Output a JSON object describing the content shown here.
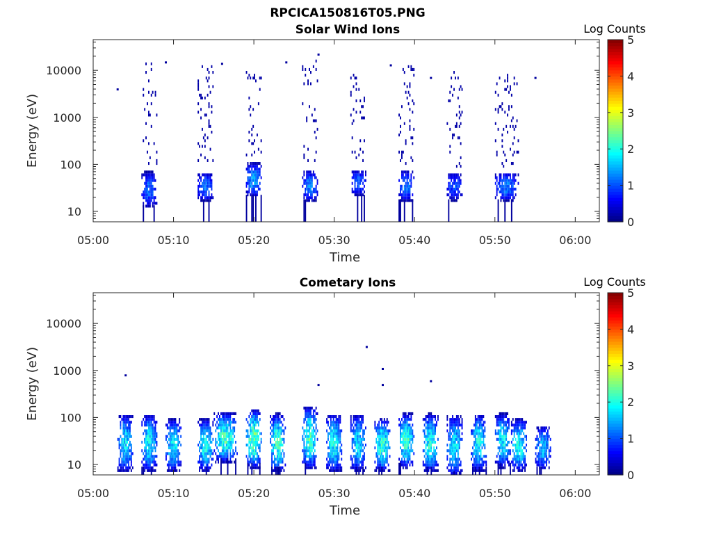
{
  "figure_title": "RPCICA150816T05.PNG",
  "colors": {
    "colormap": "jet",
    "background": "#ffffff",
    "axis": "#262626"
  },
  "chart_data": [
    {
      "type": "heatmap",
      "title": "Solar Wind Ions",
      "xlabel": "Time",
      "ylabel": "Energy (eV)",
      "xscale": "time",
      "yscale": "log",
      "xlim": [
        "05:00",
        "06:03"
      ],
      "ylim": [
        6,
        45000
      ],
      "xticks": [
        "05:00",
        "05:10",
        "05:20",
        "05:30",
        "05:40",
        "05:50",
        "06:00"
      ],
      "yticks": [
        "10",
        "100",
        "1000",
        "10000"
      ],
      "colorbar": {
        "label": "Log Counts",
        "range": [
          0,
          5
        ],
        "ticks": [
          "0",
          "1",
          "2",
          "3",
          "4",
          "5"
        ]
      },
      "bursts": [
        {
          "start": "05:06",
          "end": "05:08",
          "core_energy": [
            15,
            100
          ],
          "peak_log_counts": 1.1,
          "sparse_upper_energy": 15000
        },
        {
          "start": "05:13",
          "end": "05:15",
          "core_energy": [
            20,
            90
          ],
          "peak_log_counts": 1.2,
          "sparse_upper_energy": 12000
        },
        {
          "start": "05:19",
          "end": "05:21",
          "core_energy": [
            25,
            150
          ],
          "peak_log_counts": 1.4,
          "sparse_upper_energy": 10000
        },
        {
          "start": "05:26",
          "end": "05:28",
          "core_energy": [
            20,
            100
          ],
          "peak_log_counts": 1.2,
          "sparse_upper_energy": 20000
        },
        {
          "start": "05:32",
          "end": "05:34",
          "core_energy": [
            25,
            100
          ],
          "peak_log_counts": 1.1,
          "sparse_upper_energy": 10000
        },
        {
          "start": "05:38",
          "end": "05:40",
          "core_energy": [
            20,
            100
          ],
          "peak_log_counts": 1.2,
          "sparse_upper_energy": 12000
        },
        {
          "start": "05:44",
          "end": "05:46",
          "core_energy": [
            20,
            90
          ],
          "peak_log_counts": 1.0,
          "sparse_upper_energy": 10000
        },
        {
          "start": "05:50",
          "end": "05:53",
          "core_energy": [
            20,
            90
          ],
          "peak_log_counts": 1.2,
          "sparse_upper_energy": 9000
        }
      ],
      "outliers": [
        {
          "time": "05:03",
          "energy": 4000
        },
        {
          "time": "05:09",
          "energy": 15000
        },
        {
          "time": "05:16",
          "energy": 14000
        },
        {
          "time": "05:24",
          "energy": 15000
        },
        {
          "time": "05:28",
          "energy": 22000
        },
        {
          "time": "05:37",
          "energy": 13000
        },
        {
          "time": "05:42",
          "energy": 7000
        },
        {
          "time": "05:55",
          "energy": 7000
        }
      ]
    },
    {
      "type": "heatmap",
      "title": "Cometary Ions",
      "xlabel": "Time",
      "ylabel": "Energy (eV)",
      "xscale": "time",
      "yscale": "log",
      "xlim": [
        "05:00",
        "06:03"
      ],
      "ylim": [
        6,
        45000
      ],
      "xticks": [
        "05:00",
        "05:10",
        "05:20",
        "05:30",
        "05:40",
        "05:50",
        "06:00"
      ],
      "yticks": [
        "10",
        "100",
        "1000",
        "10000"
      ],
      "colorbar": {
        "label": "Log Counts",
        "range": [
          0,
          5
        ],
        "ticks": [
          "0",
          "1",
          "2",
          "3",
          "4",
          "5"
        ]
      },
      "bursts": [
        {
          "start": "05:03",
          "end": "05:05",
          "core_energy": [
            10,
            200
          ],
          "peak_log_counts": 1.7
        },
        {
          "start": "05:06",
          "end": "05:08",
          "core_energy": [
            10,
            200
          ],
          "peak_log_counts": 1.8
        },
        {
          "start": "05:09",
          "end": "05:11",
          "core_energy": [
            10,
            150
          ],
          "peak_log_counts": 1.8
        },
        {
          "start": "05:13",
          "end": "05:15",
          "core_energy": [
            10,
            150
          ],
          "peak_log_counts": 1.9
        },
        {
          "start": "05:15",
          "end": "05:18",
          "core_energy": [
            15,
            200
          ],
          "peak_log_counts": 2.1
        },
        {
          "start": "05:19",
          "end": "05:21",
          "core_energy": [
            12,
            250
          ],
          "peak_log_counts": 2.3
        },
        {
          "start": "05:22",
          "end": "05:24",
          "core_energy": [
            10,
            200
          ],
          "peak_log_counts": 2.1
        },
        {
          "start": "05:26",
          "end": "05:28",
          "core_energy": [
            12,
            300
          ],
          "peak_log_counts": 2.1
        },
        {
          "start": "05:29",
          "end": "05:31",
          "core_energy": [
            10,
            200
          ],
          "peak_log_counts": 1.9
        },
        {
          "start": "05:32",
          "end": "05:34",
          "core_energy": [
            10,
            200
          ],
          "peak_log_counts": 1.7
        },
        {
          "start": "05:35",
          "end": "05:37",
          "core_energy": [
            10,
            150
          ],
          "peak_log_counts": 2.1
        },
        {
          "start": "05:38",
          "end": "05:40",
          "core_energy": [
            12,
            200
          ],
          "peak_log_counts": 2.1
        },
        {
          "start": "05:41",
          "end": "05:43",
          "core_energy": [
            10,
            200
          ],
          "peak_log_counts": 2.0
        },
        {
          "start": "05:44",
          "end": "05:46",
          "core_energy": [
            8,
            200
          ],
          "peak_log_counts": 1.7
        },
        {
          "start": "05:47",
          "end": "05:49",
          "core_energy": [
            10,
            200
          ],
          "peak_log_counts": 1.8
        },
        {
          "start": "05:50",
          "end": "05:52",
          "core_energy": [
            12,
            200
          ],
          "peak_log_counts": 1.8
        },
        {
          "start": "05:52",
          "end": "05:54",
          "core_energy": [
            10,
            150
          ],
          "peak_log_counts": 1.9
        },
        {
          "start": "05:55",
          "end": "05:57",
          "core_energy": [
            10,
            100
          ],
          "peak_log_counts": 1.5
        }
      ],
      "outliers": [
        {
          "time": "05:04",
          "energy": 800
        },
        {
          "time": "05:28",
          "energy": 500
        },
        {
          "time": "05:34",
          "energy": 3200
        },
        {
          "time": "05:36",
          "energy": 1100
        },
        {
          "time": "05:36",
          "energy": 500
        },
        {
          "time": "05:42",
          "energy": 600
        }
      ]
    }
  ]
}
